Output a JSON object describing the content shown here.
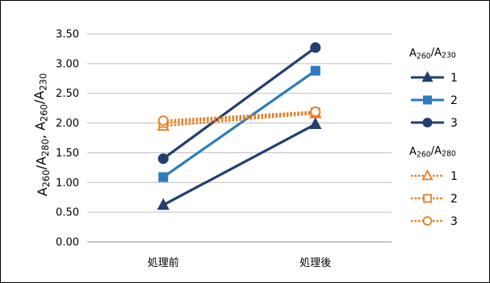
{
  "chart_data": {
    "type": "line",
    "categories": [
      "処理前",
      "処理後"
    ],
    "ylabel": {
      "parts": [
        {
          "t": "A",
          "sub": false
        },
        {
          "t": "260",
          "sub": true
        },
        {
          "t": "/A",
          "sub": false
        },
        {
          "t": "280",
          "sub": true
        },
        {
          "t": ", A",
          "sub": false
        },
        {
          "t": "260",
          "sub": true
        },
        {
          "t": "/A",
          "sub": false
        },
        {
          "t": "230",
          "sub": true
        }
      ]
    },
    "ylim": [
      0,
      3.5
    ],
    "yticks": [
      "0.00",
      "0.50",
      "1.00",
      "1.50",
      "2.00",
      "2.50",
      "3.00",
      "3.50"
    ],
    "grid": true,
    "legend_position": "right",
    "groups": [
      {
        "title_parts": [
          {
            "t": "A",
            "sub": false
          },
          {
            "t": "260",
            "sub": true
          },
          {
            "t": "/A",
            "sub": false
          },
          {
            "t": "230",
            "sub": true
          }
        ],
        "series": [
          {
            "name": "1",
            "values": [
              0.62,
              1.98
            ],
            "color": "#223f6e",
            "marker": "triangle",
            "dashed": false
          },
          {
            "name": "2",
            "values": [
              1.09,
              2.88
            ],
            "color": "#2c7bbf",
            "marker": "square",
            "dashed": false
          },
          {
            "name": "3",
            "values": [
              1.4,
              3.27
            ],
            "color": "#223f6e",
            "marker": "circle",
            "dashed": false
          }
        ]
      },
      {
        "title_parts": [
          {
            "t": "A",
            "sub": false
          },
          {
            "t": "260",
            "sub": true
          },
          {
            "t": "/A",
            "sub": false
          },
          {
            "t": "280",
            "sub": true
          }
        ],
        "series": [
          {
            "name": "1",
            "values": [
              1.95,
              2.16
            ],
            "color": "#e67e22",
            "marker": "triangle",
            "dashed": true
          },
          {
            "name": "2",
            "values": [
              2.0,
              2.18
            ],
            "color": "#e67e22",
            "marker": "square",
            "dashed": true
          },
          {
            "name": "3",
            "values": [
              2.04,
              2.19
            ],
            "color": "#e67e22",
            "marker": "circle",
            "dashed": true
          }
        ]
      }
    ]
  }
}
